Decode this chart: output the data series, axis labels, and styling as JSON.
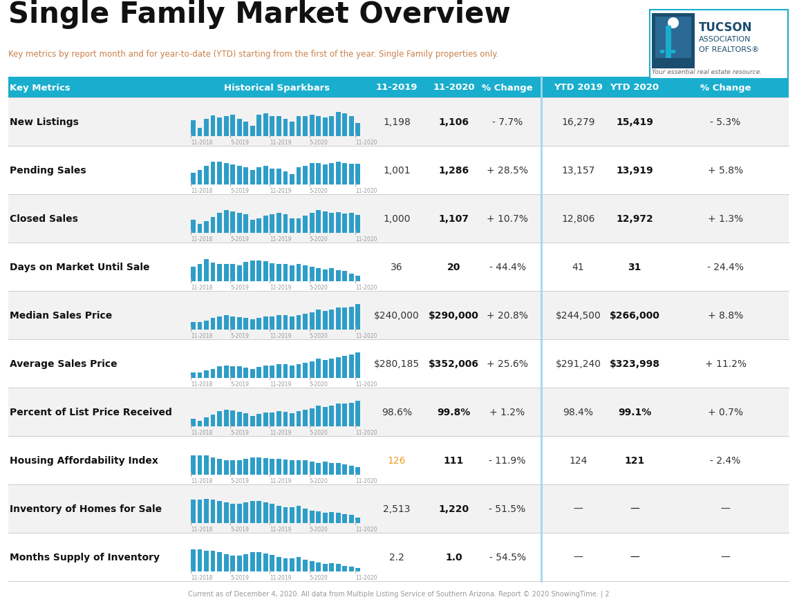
{
  "title": "Single Family Market Overview",
  "subtitle": "Key metrics by report month and for year-to-date (YTD) starting from the first of the year. Single Family properties only.",
  "footer": "Current as of December 4, 2020. All data from Multiple Listing Service of Southern Arizona. Report © 2020 ShowingTime. | 2",
  "header_bg": "#19AECE",
  "header_text_color": "#FFFFFF",
  "row_bg_odd": "#F2F2F2",
  "row_bg_even": "#FFFFFF",
  "sparkbar_color": "#2E9DC8",
  "title_color": "#1A1A1A",
  "subtitle_color": "#C8804A",
  "metrics": [
    {
      "name": "New Listings",
      "val_2019": "1,198",
      "val_2020": "1,106",
      "pct_change": "- 7.7%",
      "ytd_2019": "16,279",
      "ytd_2020": "15,419",
      "ytd_pct": "- 5.3%",
      "val_2019_color": "#333333",
      "spark_values": [
        0.6,
        0.3,
        0.65,
        0.78,
        0.7,
        0.75,
        0.8,
        0.65,
        0.55,
        0.4,
        0.8,
        0.85,
        0.75,
        0.75,
        0.65,
        0.55,
        0.75,
        0.75,
        0.8,
        0.75,
        0.7,
        0.75,
        0.9,
        0.85,
        0.75,
        0.5
      ]
    },
    {
      "name": "Pending Sales",
      "val_2019": "1,001",
      "val_2020": "1,286",
      "pct_change": "+ 28.5%",
      "ytd_2019": "13,157",
      "ytd_2020": "13,919",
      "ytd_pct": "+ 5.8%",
      "val_2019_color": "#333333",
      "spark_values": [
        0.45,
        0.55,
        0.7,
        0.85,
        0.85,
        0.8,
        0.75,
        0.7,
        0.65,
        0.55,
        0.65,
        0.7,
        0.6,
        0.6,
        0.5,
        0.4,
        0.65,
        0.7,
        0.8,
        0.8,
        0.75,
        0.8,
        0.85,
        0.8,
        0.78,
        0.78
      ]
    },
    {
      "name": "Closed Sales",
      "val_2019": "1,000",
      "val_2020": "1,107",
      "pct_change": "+ 10.7%",
      "ytd_2019": "12,806",
      "ytd_2020": "12,972",
      "ytd_pct": "+ 1.3%",
      "val_2019_color": "#333333",
      "spark_values": [
        0.5,
        0.35,
        0.45,
        0.6,
        0.75,
        0.85,
        0.8,
        0.75,
        0.7,
        0.5,
        0.55,
        0.65,
        0.7,
        0.75,
        0.7,
        0.55,
        0.55,
        0.65,
        0.75,
        0.85,
        0.8,
        0.75,
        0.78,
        0.72,
        0.75,
        0.68
      ]
    },
    {
      "name": "Days on Market Until Sale",
      "val_2019": "36",
      "val_2020": "20",
      "pct_change": "- 44.4%",
      "ytd_2019": "41",
      "ytd_2020": "31",
      "ytd_pct": "- 24.4%",
      "val_2019_color": "#333333",
      "spark_values": [
        0.55,
        0.65,
        0.82,
        0.7,
        0.65,
        0.65,
        0.65,
        0.6,
        0.72,
        0.78,
        0.78,
        0.75,
        0.68,
        0.65,
        0.65,
        0.6,
        0.65,
        0.6,
        0.55,
        0.5,
        0.45,
        0.5,
        0.42,
        0.38,
        0.28,
        0.22
      ]
    },
    {
      "name": "Median Sales Price",
      "val_2019": "$240,000",
      "val_2020": "$290,000",
      "pct_change": "+ 20.8%",
      "ytd_2019": "$244,500",
      "ytd_2020": "$266,000",
      "ytd_pct": "+ 8.8%",
      "val_2019_color": "#333333",
      "spark_values": [
        0.28,
        0.28,
        0.33,
        0.45,
        0.5,
        0.55,
        0.5,
        0.48,
        0.45,
        0.38,
        0.45,
        0.5,
        0.5,
        0.55,
        0.55,
        0.5,
        0.55,
        0.6,
        0.65,
        0.75,
        0.7,
        0.75,
        0.82,
        0.82,
        0.85,
        0.95
      ]
    },
    {
      "name": "Average Sales Price",
      "val_2019": "$280,185",
      "val_2020": "$352,006",
      "pct_change": "+ 25.6%",
      "ytd_2019": "$291,240",
      "ytd_2020": "$323,998",
      "ytd_pct": "+ 11.2%",
      "val_2019_color": "#333333",
      "spark_values": [
        0.22,
        0.22,
        0.28,
        0.35,
        0.45,
        0.48,
        0.45,
        0.45,
        0.4,
        0.35,
        0.42,
        0.48,
        0.48,
        0.52,
        0.52,
        0.48,
        0.52,
        0.58,
        0.62,
        0.72,
        0.68,
        0.72,
        0.78,
        0.82,
        0.88,
        0.95
      ]
    },
    {
      "name": "Percent of List Price Received",
      "val_2019": "98.6%",
      "val_2020": "99.8%",
      "pct_change": "+ 1.2%",
      "ytd_2019": "98.4%",
      "ytd_2020": "99.1%",
      "ytd_pct": "+ 0.7%",
      "val_2019_color": "#333333",
      "spark_values": [
        0.28,
        0.22,
        0.35,
        0.45,
        0.58,
        0.62,
        0.6,
        0.55,
        0.5,
        0.4,
        0.48,
        0.52,
        0.52,
        0.58,
        0.55,
        0.5,
        0.58,
        0.62,
        0.68,
        0.78,
        0.72,
        0.78,
        0.85,
        0.85,
        0.88,
        0.95
      ]
    },
    {
      "name": "Housing Affordability Index",
      "val_2019": "126",
      "val_2020": "111",
      "pct_change": "- 11.9%",
      "ytd_2019": "124",
      "ytd_2020": "121",
      "ytd_pct": "- 2.4%",
      "val_2019_color": "#E8A020",
      "spark_values": [
        0.72,
        0.72,
        0.72,
        0.65,
        0.6,
        0.55,
        0.55,
        0.55,
        0.6,
        0.65,
        0.65,
        0.62,
        0.6,
        0.6,
        0.58,
        0.55,
        0.55,
        0.55,
        0.5,
        0.45,
        0.5,
        0.45,
        0.45,
        0.4,
        0.35,
        0.28
      ]
    },
    {
      "name": "Inventory of Homes for Sale",
      "val_2019": "2,513",
      "val_2020": "1,220",
      "pct_change": "- 51.5%",
      "ytd_2019": "—",
      "ytd_2020": "—",
      "ytd_pct": "—",
      "val_2019_color": "#333333",
      "spark_values": [
        0.88,
        0.88,
        0.9,
        0.88,
        0.82,
        0.78,
        0.72,
        0.72,
        0.78,
        0.82,
        0.82,
        0.78,
        0.72,
        0.65,
        0.6,
        0.6,
        0.65,
        0.55,
        0.48,
        0.45,
        0.38,
        0.42,
        0.4,
        0.35,
        0.3,
        0.22
      ]
    },
    {
      "name": "Months Supply of Inventory",
      "val_2019": "2.2",
      "val_2020": "1.0",
      "pct_change": "- 54.5%",
      "ytd_2019": "—",
      "ytd_2020": "—",
      "ytd_pct": "—",
      "val_2019_color": "#333333",
      "spark_values": [
        0.82,
        0.82,
        0.78,
        0.78,
        0.72,
        0.65,
        0.6,
        0.6,
        0.65,
        0.72,
        0.72,
        0.68,
        0.62,
        0.55,
        0.5,
        0.5,
        0.55,
        0.45,
        0.4,
        0.35,
        0.28,
        0.32,
        0.28,
        0.22,
        0.18,
        0.12
      ]
    }
  ],
  "col_headers": [
    "Key Metrics",
    "Historical Sparkbars",
    "11-2019",
    "11-2020",
    "% Change",
    "YTD 2019",
    "YTD 2020",
    "% Change"
  ],
  "spark_tick_labels": [
    "11-2018",
    "5-2019",
    "11-2019",
    "5-2020",
    "11-2020"
  ],
  "spark_tick_positions": [
    0,
    6,
    12,
    18,
    25
  ]
}
